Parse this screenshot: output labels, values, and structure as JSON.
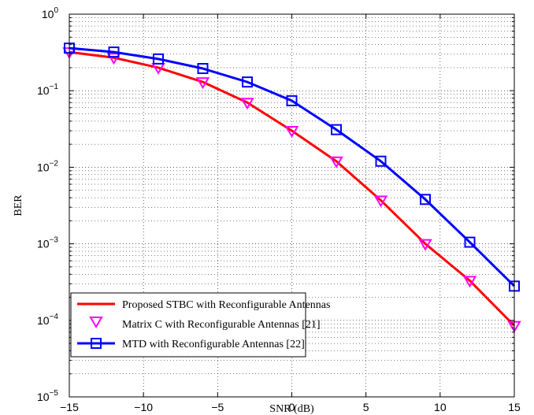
{
  "chart_data": {
    "type": "line",
    "title": "",
    "xlabel": "SNR (dB)",
    "ylabel": "BER",
    "x_scale": "linear",
    "y_scale": "log",
    "xlim": [
      -15,
      15
    ],
    "ylim": [
      1e-05,
      1
    ],
    "x_ticks": [
      "−15",
      "−10",
      "−5",
      "0",
      "5",
      "10",
      "15"
    ],
    "y_tick_labels": [
      {
        "base": "10",
        "exp": "0"
      },
      {
        "base": "10",
        "exp": "−1"
      },
      {
        "base": "10",
        "exp": "−2"
      },
      {
        "base": "10",
        "exp": "−3"
      },
      {
        "base": "10",
        "exp": "−4"
      },
      {
        "base": "10",
        "exp": "−5"
      }
    ],
    "grid": true,
    "grid_style": "dotted",
    "legend_position": "bottom-left",
    "x": [
      -15,
      -12,
      -9,
      -6,
      -3,
      0,
      3,
      6,
      9,
      12,
      15
    ],
    "series": [
      {
        "name": "Proposed STBC with Reconfigurable Antennas",
        "color": "#ff0000",
        "marker": "none",
        "values": [
          0.32,
          0.27,
          0.2,
          0.13,
          0.07,
          0.03,
          0.012,
          0.0037,
          0.001,
          0.00033,
          8.5e-05
        ]
      },
      {
        "name": "Matrix C with Reconfigurable Antennas [21]",
        "color": "#ff00ff",
        "marker": "triangle-down",
        "values": [
          0.32,
          0.27,
          0.2,
          0.13,
          0.07,
          0.03,
          0.012,
          0.0037,
          0.001,
          0.00033,
          8.5e-05
        ]
      },
      {
        "name": "MTD with Reconfigurable Antennas [22]",
        "color": "#0000ff",
        "marker": "square",
        "values": [
          0.36,
          0.32,
          0.26,
          0.195,
          0.13,
          0.074,
          0.031,
          0.012,
          0.0038,
          0.00105,
          0.00028
        ]
      }
    ]
  }
}
